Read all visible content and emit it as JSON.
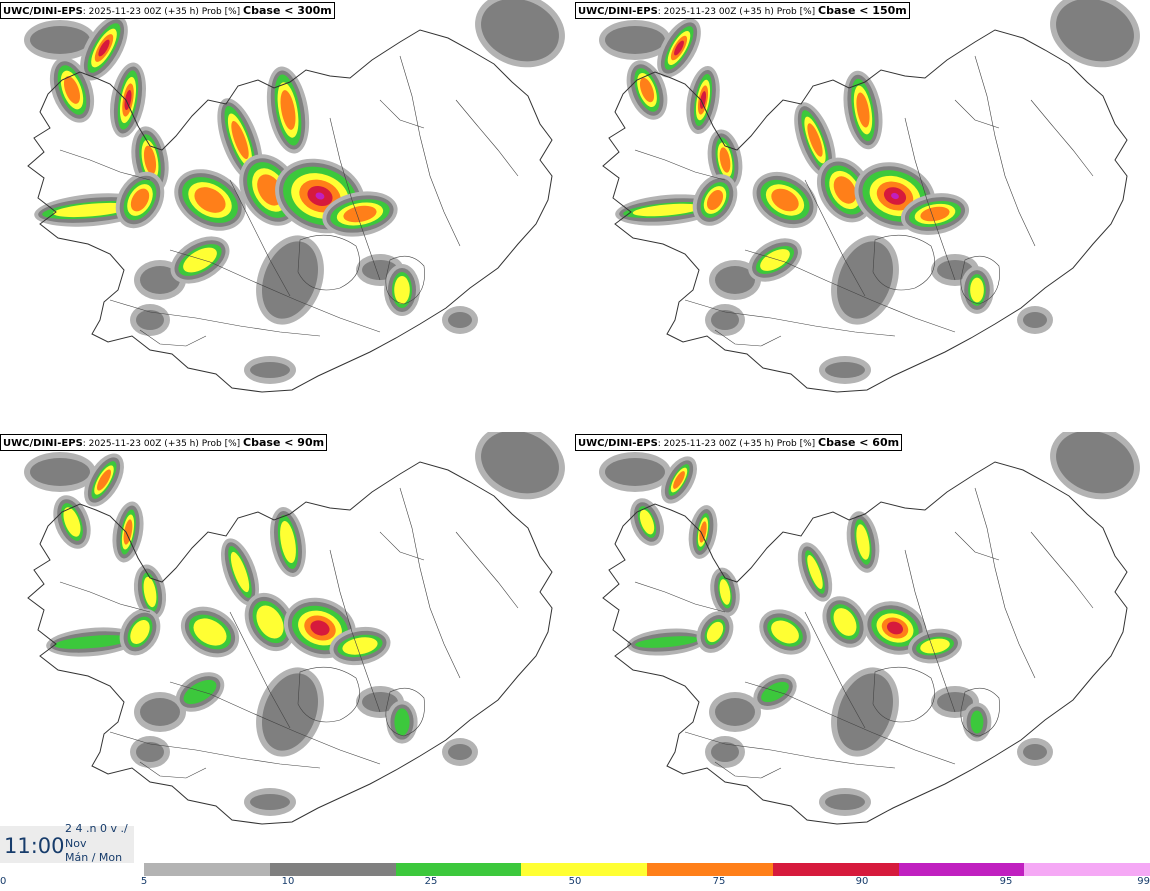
{
  "panels": [
    {
      "model": "UWC/DINI-EPS",
      "info": ": 2025-11-23 00Z (+35 h) Prob [%] ",
      "cbase": "Cbase < 300m",
      "level": 3
    },
    {
      "model": "UWC/DINI-EPS",
      "info": ": 2025-11-23 00Z (+35 h) Prob [%] ",
      "cbase": "Cbase < 150m",
      "level": 2
    },
    {
      "model": "UWC/DINI-EPS",
      "info": ": 2025-11-23 00Z (+35 h) Prob [%] ",
      "cbase": "Cbase < 90m",
      "level": 1
    },
    {
      "model": "UWC/DINI-EPS",
      "info": ": 2025-11-23 00Z (+35 h) Prob [%] ",
      "cbase": "Cbase < 60m",
      "level": 0
    }
  ],
  "time_box": {
    "time": "11:00",
    "line1": "2 4 .n 0 v ./",
    "line2": "Nov",
    "line3": "Mán / Mon"
  },
  "colorbar": {
    "ticks": [
      "0",
      "5",
      "10",
      "25",
      "50",
      "75",
      "90",
      "95",
      "99"
    ],
    "colors": [
      "#ffffff",
      "#b3b3b3",
      "#7f7f7f",
      "#3cc83c",
      "#ffff33",
      "#ff7f19",
      "#d61a3c",
      "#c020c0",
      "#f5a8f5"
    ]
  }
}
